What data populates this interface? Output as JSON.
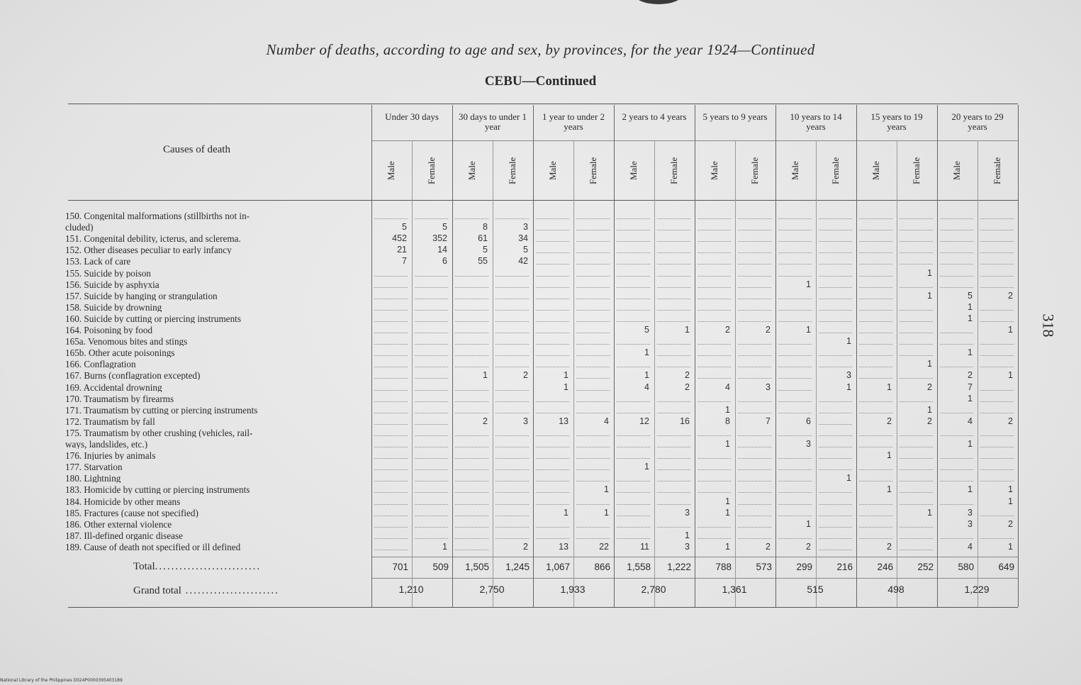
{
  "title": "Number of deaths, according to age and sex, by provinces, for the year 1924—Continued",
  "subtitle": "CEBU—Continued",
  "causes_header": "Causes of death",
  "age_groups": [
    "Under 30 days",
    "30 days to under 1 year",
    "1 year to under 2 years",
    "2 years to 4 years",
    "5 years to 9 years",
    "10 years to 14 years",
    "15 years to 19 years",
    "20 years to 29 years"
  ],
  "sex_labels": [
    "Male",
    "Female"
  ],
  "rows": [
    {
      "cause": "150. Congenital malformations (stillbirths not in-",
      "cells": [
        "",
        "",
        "",
        "",
        "",
        "",
        "",
        "",
        "",
        "",
        "",
        "",
        "",
        "",
        "",
        ""
      ]
    },
    {
      "cause": "        cluded)",
      "cells": [
        "5",
        "5",
        "8",
        "3",
        "",
        "",
        "",
        "",
        "",
        "",
        "",
        "",
        "",
        "",
        "",
        ""
      ]
    },
    {
      "cause": "151. Congenital debility, icterus, and sclerema.",
      "cells": [
        "452",
        "352",
        "61",
        "34",
        "",
        "",
        "",
        "",
        "",
        "",
        "",
        "",
        "",
        "",
        "",
        ""
      ]
    },
    {
      "cause": "152. Other diseases peculiar to early infancy",
      "cells": [
        "21",
        "14",
        "5",
        "5",
        "",
        "",
        "",
        "",
        "",
        "",
        "",
        "",
        "",
        "",
        "",
        ""
      ]
    },
    {
      "cause": "153. Lack of care",
      "cells": [
        "7",
        "6",
        "55",
        "42",
        "",
        "",
        "",
        "",
        "",
        "",
        "",
        "",
        "",
        "",
        "",
        ""
      ]
    },
    {
      "cause": "155. Suicide by poison",
      "cells": [
        "",
        "",
        "",
        "",
        "",
        "",
        "",
        "",
        "",
        "",
        "",
        "",
        "",
        "1",
        "",
        ""
      ]
    },
    {
      "cause": "156. Suicide by asphyxia",
      "cells": [
        "",
        "",
        "",
        "",
        "",
        "",
        "",
        "",
        "",
        "",
        "1",
        "",
        "",
        "",
        "",
        ""
      ]
    },
    {
      "cause": "157. Suicide by hanging or strangulation",
      "cells": [
        "",
        "",
        "",
        "",
        "",
        "",
        "",
        "",
        "",
        "",
        "",
        "",
        "",
        "1",
        "5",
        "2"
      ]
    },
    {
      "cause": "158. Suicide by drowning",
      "cells": [
        "",
        "",
        "",
        "",
        "",
        "",
        "",
        "",
        "",
        "",
        "",
        "",
        "",
        "",
        "1",
        ""
      ]
    },
    {
      "cause": "160. Suicide by cutting or piercing instruments",
      "cells": [
        "",
        "",
        "",
        "",
        "",
        "",
        "",
        "",
        "",
        "",
        "",
        "",
        "",
        "",
        "1",
        ""
      ]
    },
    {
      "cause": "164. Poisoning by food",
      "cells": [
        "",
        "",
        "",
        "",
        "",
        "",
        "5",
        "1",
        "2",
        "2",
        "1",
        "",
        "",
        "",
        "",
        "1"
      ]
    },
    {
      "cause": "165a. Venomous bites and stings",
      "cells": [
        "",
        "",
        "",
        "",
        "",
        "",
        "",
        "",
        "",
        "",
        "",
        "1",
        "",
        "",
        "",
        ""
      ]
    },
    {
      "cause": "165b. Other acute poisonings",
      "cells": [
        "",
        "",
        "",
        "",
        "",
        "",
        "1",
        "",
        "",
        "",
        "",
        "",
        "",
        "",
        "1",
        ""
      ]
    },
    {
      "cause": "166. Conflagration",
      "cells": [
        "",
        "",
        "",
        "",
        "",
        "",
        "",
        "",
        "",
        "",
        "",
        "",
        "",
        "1",
        "",
        ""
      ]
    },
    {
      "cause": "167. Burns (conflagration excepted)",
      "cells": [
        "",
        "",
        "1",
        "2",
        "1",
        "",
        "1",
        "2",
        "",
        "",
        "",
        "3",
        "",
        "",
        "2",
        "1"
      ]
    },
    {
      "cause": "169. Accidental drowning",
      "cells": [
        "",
        "",
        "",
        "",
        "1",
        "",
        "4",
        "2",
        "4",
        "3",
        "",
        "1",
        "1",
        "2",
        "7",
        ""
      ]
    },
    {
      "cause": "170. Traumatism by firearms",
      "cells": [
        "",
        "",
        "",
        "",
        "",
        "",
        "",
        "",
        "",
        "",
        "",
        "",
        "",
        "",
        "1",
        ""
      ]
    },
    {
      "cause": "171. Traumatism by cutting or piercing instruments",
      "cells": [
        "",
        "",
        "",
        "",
        "",
        "",
        "",
        "",
        "1",
        "",
        "",
        "",
        "",
        "1",
        "",
        ""
      ]
    },
    {
      "cause": "172. Traumatism by fall",
      "cells": [
        "",
        "",
        "2",
        "3",
        "13",
        "4",
        "12",
        "16",
        "8",
        "7",
        "6",
        "",
        "2",
        "2",
        "4",
        "2"
      ]
    },
    {
      "cause": "175. Traumatism by other crushing (vehicles, rail-",
      "cells": [
        "",
        "",
        "",
        "",
        "",
        "",
        "",
        "",
        "",
        "",
        "",
        "",
        "",
        "",
        "",
        ""
      ]
    },
    {
      "cause": "        ways, landslides, etc.)",
      "cells": [
        "",
        "",
        "",
        "",
        "",
        "",
        "",
        "",
        "1",
        "",
        "3",
        "",
        "",
        "",
        "1",
        ""
      ]
    },
    {
      "cause": "176. Injuries by animals",
      "cells": [
        "",
        "",
        "",
        "",
        "",
        "",
        "",
        "",
        "",
        "",
        "",
        "",
        "1",
        "",
        "",
        ""
      ]
    },
    {
      "cause": "177. Starvation",
      "cells": [
        "",
        "",
        "",
        "",
        "",
        "",
        "1",
        "",
        "",
        "",
        "",
        "",
        "",
        "",
        "",
        ""
      ]
    },
    {
      "cause": "180. Lightning",
      "cells": [
        "",
        "",
        "",
        "",
        "",
        "",
        "",
        "",
        "",
        "",
        "",
        "1",
        "",
        "",
        "",
        ""
      ]
    },
    {
      "cause": "183. Homicide by cutting or piercing instruments",
      "cells": [
        "",
        "",
        "",
        "",
        "",
        "1",
        "",
        "",
        "",
        "",
        "",
        "",
        "1",
        "",
        "1",
        "1"
      ]
    },
    {
      "cause": "184. Homicide by other means",
      "cells": [
        "",
        "",
        "",
        "",
        "",
        "",
        "",
        "",
        "1",
        "",
        "",
        "",
        "",
        "",
        "",
        "1"
      ]
    },
    {
      "cause": "185. Fractures (cause not specified)",
      "cells": [
        "",
        "",
        "",
        "",
        "1",
        "1",
        "",
        "3",
        "1",
        "",
        "",
        "",
        "",
        "1",
        "3",
        ""
      ]
    },
    {
      "cause": "186. Other external violence",
      "cells": [
        "",
        "",
        "",
        "",
        "",
        "",
        "",
        "",
        "",
        "",
        "1",
        "",
        "",
        "",
        "3",
        "2"
      ]
    },
    {
      "cause": "187. Ill-defined organic disease",
      "cells": [
        "",
        "",
        "",
        "",
        "",
        "",
        "",
        "1",
        "",
        "",
        "",
        "",
        "",
        "",
        "",
        ""
      ]
    },
    {
      "cause": "189. Cause of death not specified or ill defined",
      "cells": [
        "",
        "1",
        "",
        "2",
        "13",
        "22",
        "11",
        "3",
        "1",
        "2",
        "2",
        "",
        "2",
        "",
        "4",
        "1"
      ]
    }
  ],
  "total_label": "Total",
  "totals": [
    "701",
    "509",
    "1,505",
    "1,245",
    "1,067",
    "866",
    "1,558",
    "1,222",
    "788",
    "573",
    "299",
    "216",
    "246",
    "252",
    "580",
    "649"
  ],
  "grand_total_label": "Grand total",
  "grand_totals": [
    "1,210",
    "2,750",
    "1,933",
    "2,780",
    "1,361",
    "515",
    "498",
    "1,229"
  ],
  "page_number": "318",
  "footer_text": "National Library of the Philippines    D024P0000395403189"
}
